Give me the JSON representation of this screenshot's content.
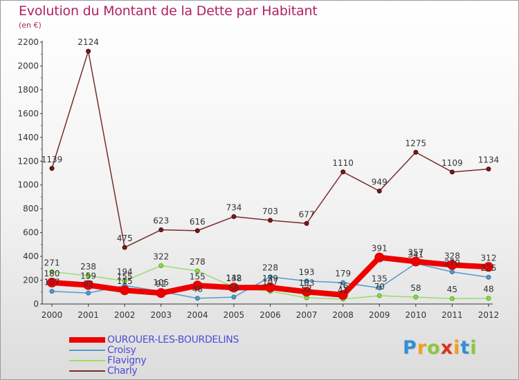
{
  "header": {
    "title": "Evolution du Montant de la Dette par Habitant",
    "subtitle": "(en €)"
  },
  "logo": {
    "text": "Proxiti",
    "letters": [
      {
        "ch": "P",
        "color": "#2f8fd8"
      },
      {
        "ch": "r",
        "color": "#f0a01e"
      },
      {
        "ch": "o",
        "color": "#8cc63e"
      },
      {
        "ch": "x",
        "color": "#e0301e"
      },
      {
        "ch": "i",
        "color": "#f0a01e"
      },
      {
        "ch": "t",
        "color": "#2f8fd8"
      },
      {
        "ch": "i",
        "color": "#8cc63e"
      }
    ]
  },
  "chart_data": {
    "type": "line",
    "x": [
      "2000",
      "2001",
      "2002",
      "2003",
      "2004",
      "2005",
      "2006",
      "2007",
      "2008",
      "2009",
      "2010",
      "2011",
      "2012"
    ],
    "ylim": [
      0,
      2200
    ],
    "yticks": [
      "0",
      "200",
      "400",
      "600",
      "800",
      "1000",
      "1200",
      "1400",
      "1600",
      "1800",
      "2000",
      "2200"
    ],
    "grid": false,
    "legend_position": "bottom-left",
    "series": [
      {
        "name": "OUROUER-LES-BOURDELINS",
        "color": "#ee0000",
        "values": [
          180,
          159,
          115,
          92,
          155,
          138,
          139,
          103,
          76,
          391,
          357,
          328,
          312
        ],
        "labels": [
          "180",
          "159",
          "115",
          "92",
          "155",
          "138",
          "139",
          "103",
          "76",
          "391",
          "357",
          "328",
          "312"
        ]
      },
      {
        "name": "Croisy",
        "color": "#5599cc",
        "values": [
          107,
          92,
          155,
          105,
          48,
          58,
          228,
          193,
          179,
          135,
          341,
          270,
          225
        ],
        "labels": [
          "107",
          "92",
          "155",
          "105",
          "48",
          "58",
          "228",
          "193",
          "179",
          "135",
          "341",
          "270",
          "225"
        ]
      },
      {
        "name": "Flavigny",
        "color": "#99dd66",
        "values": [
          271,
          238,
          194,
          322,
          278,
          142,
          107,
          52,
          41,
          70,
          58,
          45,
          48
        ],
        "labels": [
          "271",
          "238",
          "194",
          "322",
          "278",
          "142",
          "107",
          "52",
          "41",
          "70",
          "58",
          "45",
          "48"
        ]
      },
      {
        "name": "Charly",
        "color": "#7a2a2a",
        "values": [
          1139,
          2124,
          475,
          623,
          616,
          734,
          703,
          677,
          1110,
          949,
          1275,
          1109,
          1134
        ],
        "labels": [
          "1139",
          "2124",
          "475",
          "623",
          "616",
          "734",
          "703",
          "677",
          "1110",
          "949",
          "1275",
          "1109",
          "1134"
        ]
      }
    ]
  }
}
